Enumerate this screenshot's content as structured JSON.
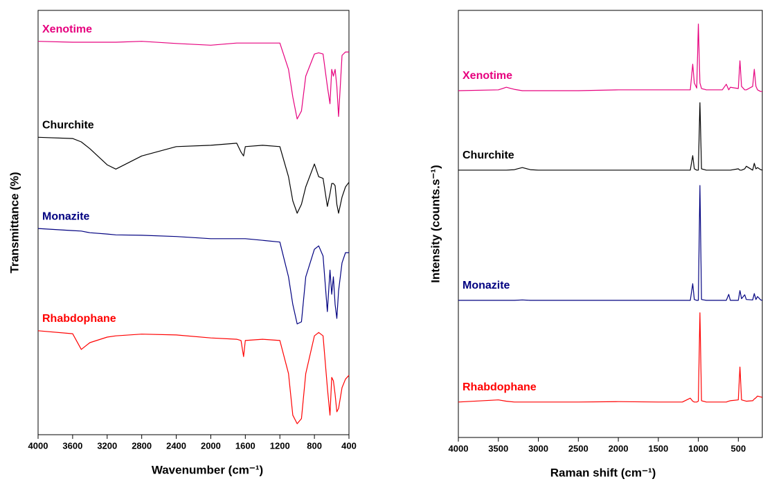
{
  "chart_data": [
    {
      "type": "line",
      "xlabel": "Wavenumber (cm⁻¹)",
      "ylabel": "Transmittance (%)",
      "xlim": [
        4000,
        400
      ],
      "xticks": [
        4000,
        3600,
        3200,
        2800,
        2400,
        2000,
        1600,
        1200,
        800,
        400
      ],
      "ylim": [
        0,
        100
      ],
      "x": [
        4000,
        3600,
        3500,
        3400,
        3200,
        3100,
        2800,
        2400,
        2000,
        1700,
        1650,
        1620,
        1600,
        1400,
        1200,
        1100,
        1050,
        1000,
        950,
        900,
        800,
        750,
        700,
        650,
        620,
        600,
        580,
        560,
        540,
        520,
        480,
        440,
        400
      ],
      "series": [
        {
          "name": "Xenotime",
          "color": "#e6007e",
          "values": [
            92.7,
            92.5,
            92.5,
            92.5,
            92.5,
            92.5,
            92.7,
            92.2,
            91.8,
            92.3,
            92.3,
            92.3,
            92.3,
            92.3,
            92.3,
            86.1,
            79.6,
            74.4,
            76.3,
            84.5,
            89.7,
            90.0,
            89.7,
            82.1,
            78.0,
            86.1,
            84.5,
            86.1,
            82.1,
            75.0,
            89.4,
            90.2,
            90.2
          ]
        },
        {
          "name": "Churchite",
          "color": "#000000",
          "values": [
            70.1,
            69.8,
            69.0,
            67.4,
            63.6,
            62.6,
            65.7,
            67.9,
            68.2,
            68.7,
            66.6,
            65.7,
            67.9,
            68.2,
            67.9,
            60.8,
            55.1,
            52.2,
            54.3,
            58.4,
            63.8,
            60.8,
            60.4,
            53.8,
            56.8,
            59.2,
            59.2,
            58.7,
            54.3,
            52.2,
            56.0,
            58.4,
            59.5
          ]
        },
        {
          "name": "Monazite",
          "color": "#000080",
          "values": [
            48.6,
            48.1,
            48.0,
            47.6,
            47.3,
            47.1,
            47.0,
            46.7,
            46.2,
            46.2,
            46.2,
            46.2,
            46.2,
            45.8,
            45.4,
            37.2,
            30.7,
            26.1,
            26.6,
            37.2,
            43.7,
            44.5,
            42.1,
            29.0,
            38.8,
            33.1,
            37.2,
            30.7,
            27.4,
            33.9,
            40.5,
            42.9,
            42.9
          ]
        },
        {
          "name": "Rhabdophane",
          "color": "#ff0000",
          "values": [
            24.5,
            23.8,
            20.1,
            21.7,
            23.0,
            23.3,
            23.7,
            23.5,
            22.8,
            22.5,
            22.2,
            18.4,
            22.2,
            22.5,
            22.2,
            14.4,
            4.6,
            2.6,
            3.8,
            14.4,
            23.3,
            24.1,
            23.3,
            11.1,
            4.6,
            13.5,
            12.7,
            9.5,
            5.4,
            6.2,
            11.1,
            13.1,
            14.0
          ]
        }
      ]
    },
    {
      "type": "line",
      "xlabel": "Raman shift (cm⁻¹)",
      "ylabel": "Intensity (counts.s⁻¹)",
      "xlim": [
        4000,
        200
      ],
      "xticks": [
        4000,
        3500,
        3000,
        2500,
        2000,
        1500,
        1000,
        500
      ],
      "ylim": [
        0,
        100
      ],
      "x": [
        4000,
        3500,
        3400,
        3300,
        3200,
        3100,
        3000,
        2500,
        2000,
        1500,
        1200,
        1100,
        1070,
        1050,
        1020,
        1000,
        980,
        960,
        900,
        700,
        650,
        620,
        600,
        500,
        480,
        460,
        420,
        400,
        320,
        300,
        280,
        260,
        220,
        200
      ],
      "series": [
        {
          "name": "Xenotime",
          "color": "#e6007e",
          "values": [
            81.2,
            81.4,
            82.0,
            81.5,
            81.2,
            81.2,
            81.2,
            81.2,
            81.4,
            81.4,
            81.4,
            81.4,
            87.4,
            83.0,
            81.8,
            96.8,
            83.0,
            81.7,
            81.4,
            81.4,
            82.7,
            81.4,
            82.0,
            81.7,
            88.2,
            82.2,
            81.4,
            81.4,
            82.2,
            86.2,
            82.2,
            81.4,
            81.0,
            81.0
          ]
        },
        {
          "name": "Churchite",
          "color": "#000000",
          "values": [
            62.6,
            62.6,
            62.6,
            62.7,
            63.2,
            62.7,
            62.6,
            62.6,
            62.6,
            62.6,
            62.6,
            62.6,
            66.0,
            62.9,
            62.6,
            62.6,
            78.4,
            62.9,
            62.6,
            62.6,
            62.6,
            62.6,
            62.6,
            62.9,
            62.6,
            62.6,
            62.9,
            63.5,
            62.6,
            64.2,
            62.9,
            63.2,
            62.7,
            62.6
          ]
        },
        {
          "name": "Monazite",
          "color": "#000080",
          "values": [
            32.1,
            32.1,
            32.1,
            32.1,
            32.2,
            32.1,
            32.1,
            32.1,
            32.1,
            32.1,
            32.1,
            32.1,
            36.0,
            32.3,
            32.1,
            32.1,
            59.0,
            32.3,
            32.1,
            32.1,
            32.1,
            33.5,
            32.1,
            32.1,
            34.4,
            32.5,
            33.4,
            32.3,
            32.2,
            33.7,
            32.3,
            33.0,
            32.2,
            32.1
          ]
        },
        {
          "name": "Rhabdophane",
          "color": "#ff0000",
          "values": [
            8.3,
            8.8,
            8.5,
            8.3,
            8.3,
            8.3,
            8.3,
            8.3,
            8.4,
            8.3,
            8.3,
            9.2,
            8.5,
            8.3,
            8.3,
            8.5,
            29.2,
            8.6,
            8.3,
            8.3,
            8.3,
            8.5,
            8.6,
            8.8,
            16.5,
            8.8,
            8.6,
            8.5,
            8.6,
            9.0,
            9.3,
            9.7,
            9.5,
            9.4
          ]
        }
      ]
    }
  ]
}
